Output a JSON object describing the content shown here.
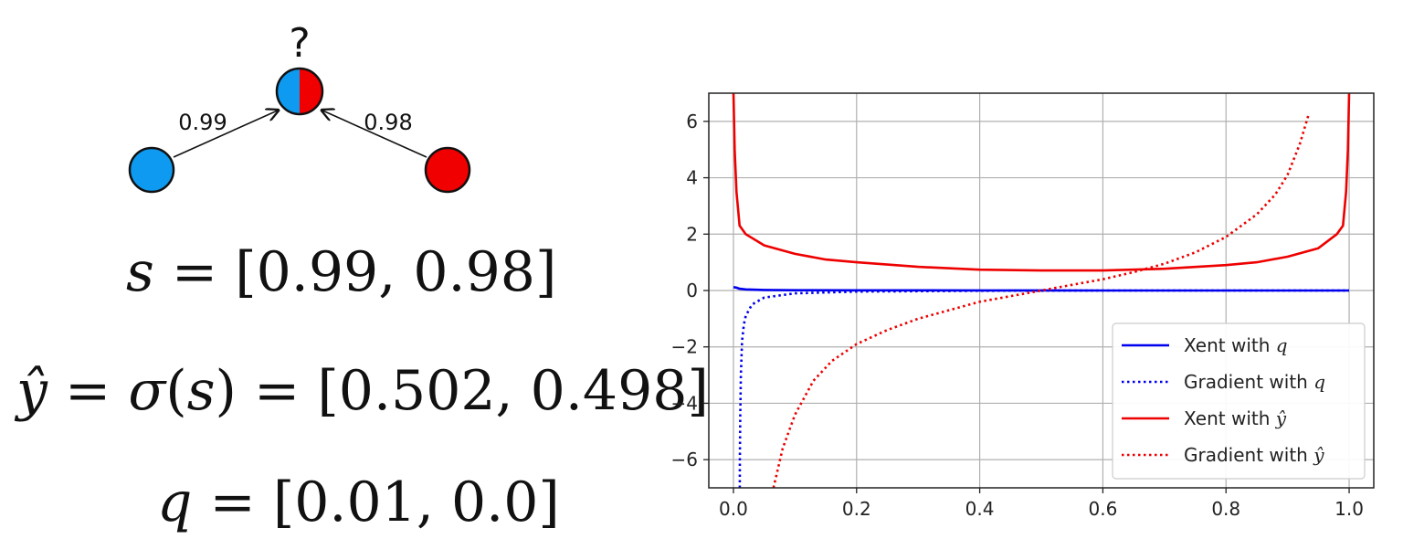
{
  "diagram": {
    "question_mark": "?",
    "edge_left_weight": "0.99",
    "edge_right_weight": "0.98",
    "colors": {
      "blue": "#0d9af0",
      "red": "#f00000"
    }
  },
  "equations": {
    "s": {
      "lhs": "s",
      "eq": " = ",
      "rhs": "[0.99, 0.98]"
    },
    "yhat": {
      "lhs_var": "ŷ",
      "eq1": " = ",
      "func": "σ",
      "open": "(",
      "arg": "s",
      "close": ")",
      "eq2": " = ",
      "rhs": "[0.502, 0.498]"
    },
    "q": {
      "lhs": "q",
      "eq": " = ",
      "rhs": "[0.01, 0.0]"
    }
  },
  "chart_data": {
    "type": "line",
    "xlim": [
      -0.04,
      1.04
    ],
    "ylim": [
      -7,
      7
    ],
    "xticks": [
      0.0,
      0.2,
      0.4,
      0.6,
      0.8,
      1.0
    ],
    "xtick_labels": [
      "0.0",
      "0.2",
      "0.4",
      "0.6",
      "0.8",
      "1.0"
    ],
    "yticks": [
      -6,
      -4,
      -2,
      0,
      2,
      4,
      6
    ],
    "ytick_labels": [
      "−6",
      "−4",
      "−2",
      "0",
      "2",
      "4",
      "6"
    ],
    "grid": true,
    "legend_position": "lower-right",
    "series": [
      {
        "name": "Xent with q",
        "var": "q",
        "color": "#0000ee",
        "style": "solid",
        "x": [
          0.0,
          0.005,
          0.01,
          0.02,
          0.05,
          0.1,
          0.2,
          0.4,
          0.6,
          0.8,
          0.9,
          1.0
        ],
        "y": [
          0.12,
          0.1,
          0.06,
          0.04,
          0.02,
          0.01,
          0.005,
          0.002,
          0.001,
          0.001,
          0.0,
          0.0
        ]
      },
      {
        "name": "Gradient with q",
        "var": "q",
        "color": "#0000ee",
        "style": "dotted",
        "x": [
          0.0103,
          0.0105,
          0.011,
          0.012,
          0.014,
          0.017,
          0.02,
          0.03,
          0.05,
          0.1,
          0.2,
          0.4,
          0.6,
          0.8,
          1.0
        ],
        "y": [
          -7.0,
          -6.0,
          -4.5,
          -3.0,
          -1.8,
          -1.2,
          -0.9,
          -0.5,
          -0.25,
          -0.1,
          -0.04,
          -0.01,
          0.0,
          0.0,
          0.0
        ]
      },
      {
        "name": "Xent with ŷ",
        "var": "ŷ",
        "color": "#ee0000",
        "style": "solid",
        "x": [
          0.0,
          0.002,
          0.005,
          0.01,
          0.02,
          0.05,
          0.1,
          0.15,
          0.2,
          0.3,
          0.4,
          0.5,
          0.6,
          0.7,
          0.8,
          0.85,
          0.9,
          0.95,
          0.98,
          0.99,
          0.995,
          0.998,
          1.0
        ],
        "y": [
          7.0,
          5.0,
          3.5,
          2.3,
          2.0,
          1.6,
          1.3,
          1.1,
          1.0,
          0.84,
          0.74,
          0.71,
          0.71,
          0.77,
          0.9,
          1.0,
          1.2,
          1.5,
          2.0,
          2.3,
          3.5,
          5.0,
          7.0
        ]
      },
      {
        "name": "Gradient with ŷ",
        "var": "ŷ",
        "color": "#ee0000",
        "style": "dotted",
        "x": [
          0.065,
          0.08,
          0.1,
          0.13,
          0.16,
          0.2,
          0.25,
          0.3,
          0.35,
          0.4,
          0.45,
          0.5,
          0.55,
          0.6,
          0.65,
          0.7,
          0.75,
          0.8,
          0.85,
          0.88,
          0.9,
          0.92,
          0.935
        ],
        "y": [
          -7.0,
          -5.6,
          -4.4,
          -3.2,
          -2.5,
          -1.9,
          -1.4,
          -1.0,
          -0.7,
          -0.4,
          -0.2,
          0.0,
          0.2,
          0.4,
          0.65,
          0.95,
          1.35,
          1.9,
          2.7,
          3.4,
          4.1,
          5.2,
          6.3
        ]
      }
    ]
  }
}
